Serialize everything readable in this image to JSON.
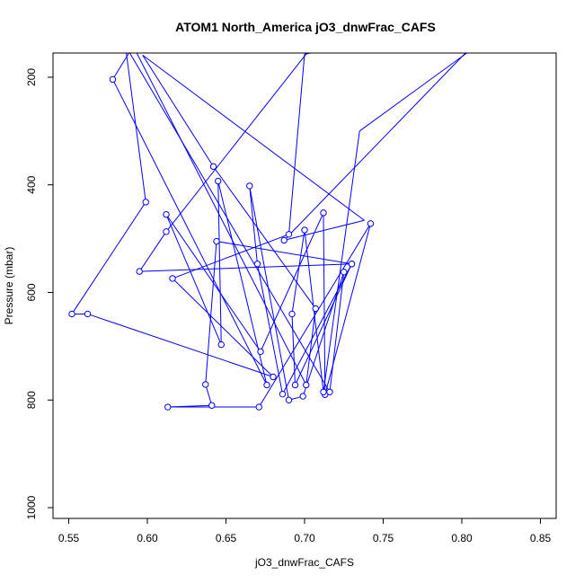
{
  "chart_data": {
    "type": "line",
    "title": "ATOM1 North_America jO3_dnwFrac_CAFS",
    "xlabel": "jO3_dnwFrac_CAFS",
    "ylabel": "Pressure (mbar)",
    "xlim": [
      0.54,
      0.86
    ],
    "ylim": [
      1020,
      155
    ],
    "y_reversed": true,
    "grid": false,
    "x_ticks": [
      0.55,
      0.6,
      0.65,
      0.7,
      0.75,
      0.8,
      0.85
    ],
    "x_tick_labels": [
      "0.55",
      "0.60",
      "0.65",
      "0.70",
      "0.75",
      "0.80",
      "0.85"
    ],
    "y_ticks": [
      200,
      400,
      600,
      800,
      1000
    ],
    "y_tick_labels": [
      "200",
      "400",
      "600",
      "800",
      "1000"
    ],
    "series": [
      {
        "color": "#0000ff",
        "marker": "open-circle",
        "points": [
          {
            "x": 0.804,
            "y": 150,
            "marker": false
          },
          {
            "x": 0.687,
            "y": 503
          },
          {
            "x": 0.738,
            "y": 466,
            "marker": false
          },
          {
            "x": 0.597,
            "y": 159,
            "marker": false
          },
          {
            "x": 0.642,
            "y": 366
          },
          {
            "x": 0.707,
            "y": 630
          },
          {
            "x": 0.701,
            "y": 772
          },
          {
            "x": 0.591,
            "y": 142,
            "marker": false
          },
          {
            "x": 0.578,
            "y": 204
          },
          {
            "x": 0.676,
            "y": 772
          },
          {
            "x": 0.645,
            "y": 393
          },
          {
            "x": 0.647,
            "y": 697
          },
          {
            "x": 0.612,
            "y": 455
          },
          {
            "x": 0.672,
            "y": 710
          },
          {
            "x": 0.712,
            "y": 452
          },
          {
            "x": 0.713,
            "y": 790
          },
          {
            "x": 0.742,
            "y": 472
          },
          {
            "x": 0.671,
            "y": 813
          },
          {
            "x": 0.613,
            "y": 813
          },
          {
            "x": 0.641,
            "y": 810
          },
          {
            "x": 0.637,
            "y": 771
          },
          {
            "x": 0.644,
            "y": 505
          },
          {
            "x": 0.73,
            "y": 547
          },
          {
            "x": 0.595,
            "y": 561
          },
          {
            "x": 0.612,
            "y": 487
          },
          {
            "x": 0.701,
            "y": 157,
            "marker": false
          },
          {
            "x": 0.708,
            "y": 152,
            "marker": false
          },
          {
            "x": 0.7,
            "y": 157,
            "marker": false
          },
          {
            "x": 0.69,
            "y": 492
          },
          {
            "x": 0.616,
            "y": 574
          },
          {
            "x": 0.68,
            "y": 757
          },
          {
            "x": 0.562,
            "y": 640
          },
          {
            "x": 0.552,
            "y": 640
          },
          {
            "x": 0.599,
            "y": 432
          },
          {
            "x": 0.586,
            "y": 141,
            "marker": false
          },
          {
            "x": 0.716,
            "y": 785
          },
          {
            "x": 0.725,
            "y": 562
          },
          {
            "x": 0.699,
            "y": 793
          },
          {
            "x": 0.69,
            "y": 800
          },
          {
            "x": 0.665,
            "y": 402
          },
          {
            "x": 0.67,
            "y": 547
          },
          {
            "x": 0.686,
            "y": 789
          },
          {
            "x": 0.73,
            "y": 547
          },
          {
            "x": 0.694,
            "y": 772
          },
          {
            "x": 0.692,
            "y": 640
          },
          {
            "x": 0.7,
            "y": 484
          },
          {
            "x": 0.712,
            "y": 785
          },
          {
            "x": 0.735,
            "y": 300,
            "marker": false
          },
          {
            "x": 0.806,
            "y": 149,
            "marker": false
          }
        ]
      }
    ]
  }
}
